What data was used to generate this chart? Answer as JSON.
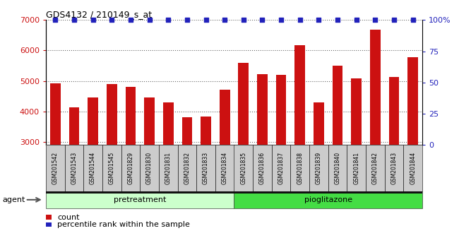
{
  "title": "GDS4132 / 210149_s_at",
  "samples": [
    "GSM201542",
    "GSM201543",
    "GSM201544",
    "GSM201545",
    "GSM201829",
    "GSM201830",
    "GSM201831",
    "GSM201832",
    "GSM201833",
    "GSM201834",
    "GSM201835",
    "GSM201836",
    "GSM201837",
    "GSM201838",
    "GSM201839",
    "GSM201840",
    "GSM201841",
    "GSM201842",
    "GSM201843",
    "GSM201844"
  ],
  "counts": [
    4930,
    4130,
    4450,
    4900,
    4810,
    4470,
    4300,
    3810,
    3830,
    4720,
    5600,
    5220,
    5200,
    6180,
    4290,
    5500,
    5080,
    6680,
    5120,
    5790
  ],
  "percentile": [
    100,
    100,
    100,
    100,
    100,
    100,
    100,
    100,
    100,
    100,
    100,
    100,
    100,
    100,
    100,
    100,
    100,
    100,
    100,
    100
  ],
  "bar_color": "#cc1111",
  "percentile_color": "#2222bb",
  "ylim_left": [
    2900,
    7000
  ],
  "ylim_right": [
    0,
    100
  ],
  "yticks_left": [
    3000,
    4000,
    5000,
    6000,
    7000
  ],
  "yticks_right": [
    0,
    25,
    50,
    75,
    100
  ],
  "background_plot": "#ffffff",
  "tick_bg": "#cccccc",
  "group_colors": {
    "pretreatment": "#ccffcc",
    "pioglitazone": "#44dd44"
  },
  "agent_label": "agent",
  "legend_count": "count",
  "legend_percentile": "percentile rank within the sample",
  "pre_indices": [
    0,
    9
  ],
  "pio_indices": [
    10,
    19
  ]
}
